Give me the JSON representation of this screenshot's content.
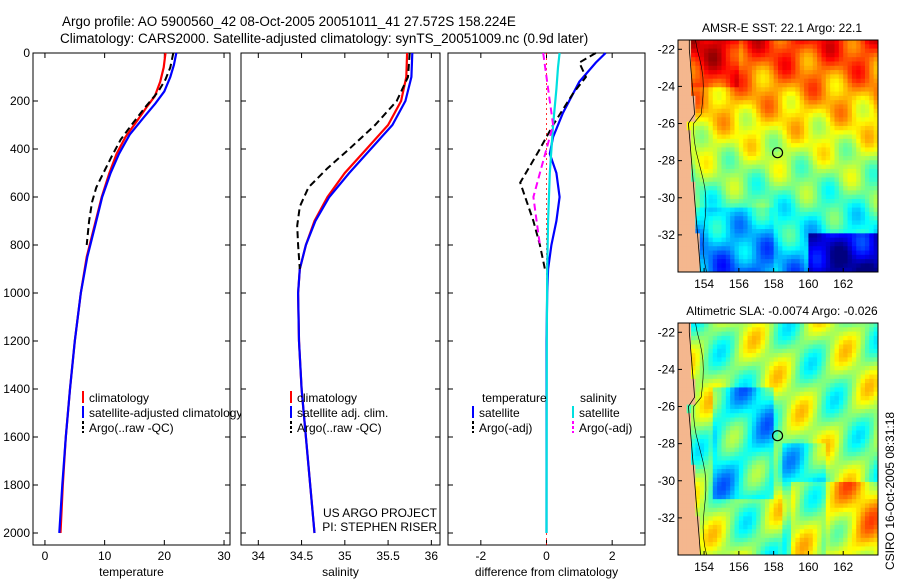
{
  "header": {
    "title_line1": "Argo profile: AO 5900560_42 08-Oct-2005 20051011_41 27.572S 158.224E",
    "title_line2": "Climatology: CARS2000. Satellite-adjusted climatology: synTS_20051009.nc (0.9d later)"
  },
  "footer_credit": "CSIRO 16-Oct-2005 08:31:18",
  "colors": {
    "climatology": "#ff0000",
    "satellite": "#0000ff",
    "argo": "#000000",
    "satellite_salt": "#00e0e0",
    "argo_salt": "#ff00ff"
  },
  "chart_data": [
    {
      "type": "line",
      "id": "temperature",
      "xlabel": "temperature",
      "xlim": [
        -2,
        31
      ],
      "ylim": [
        0,
        2050
      ],
      "xticks": [
        0,
        10,
        20,
        30
      ],
      "yticks": [
        0,
        200,
        400,
        600,
        800,
        1000,
        1200,
        1400,
        1600,
        1800,
        2000
      ],
      "y_reversed": true,
      "legend": [
        "climatology",
        "satellite-adjusted climatology",
        "Argo(..raw -QC)"
      ],
      "legend_position": "lower-center",
      "series": [
        {
          "name": "climatology",
          "color": "#ff0000",
          "style": "solid",
          "points": [
            [
              20.2,
              0
            ],
            [
              19.9,
              60
            ],
            [
              19.3,
              120
            ],
            [
              18.4,
              180
            ],
            [
              17.2,
              220
            ],
            [
              15.5,
              280
            ],
            [
              13.5,
              350
            ],
            [
              12.0,
              420
            ],
            [
              10.8,
              500
            ],
            [
              9.5,
              600
            ],
            [
              8.3,
              720
            ],
            [
              7.0,
              850
            ],
            [
              6.0,
              1000
            ],
            [
              5.0,
              1200
            ],
            [
              4.2,
              1400
            ],
            [
              3.5,
              1600
            ],
            [
              3.0,
              1800
            ],
            [
              2.6,
              2000
            ]
          ]
        },
        {
          "name": "satellite-adjusted climatology",
          "color": "#0000ff",
          "style": "solid",
          "points": [
            [
              22.0,
              0
            ],
            [
              21.6,
              50
            ],
            [
              21.0,
              100
            ],
            [
              20.0,
              160
            ],
            [
              18.5,
              210
            ],
            [
              16.5,
              270
            ],
            [
              14.2,
              340
            ],
            [
              12.4,
              420
            ],
            [
              11.0,
              500
            ],
            [
              9.6,
              600
            ],
            [
              8.4,
              720
            ],
            [
              7.1,
              850
            ],
            [
              6.0,
              1000
            ],
            [
              5.0,
              1200
            ],
            [
              4.2,
              1400
            ],
            [
              3.5,
              1600
            ],
            [
              2.9,
              1800
            ],
            [
              2.4,
              2000
            ]
          ]
        },
        {
          "name": "Argo(..raw -QC)",
          "color": "#000000",
          "style": "dashed",
          "points": [
            [
              21.5,
              0
            ],
            [
              21.0,
              60
            ],
            [
              20.2,
              110
            ],
            [
              19.0,
              160
            ],
            [
              17.0,
              220
            ],
            [
              14.8,
              290
            ],
            [
              12.7,
              360
            ],
            [
              11.2,
              430
            ],
            [
              9.8,
              500
            ],
            [
              8.6,
              560
            ],
            [
              7.9,
              620
            ],
            [
              7.4,
              700
            ],
            [
              7.0,
              800
            ]
          ]
        }
      ]
    },
    {
      "type": "line",
      "id": "salinity",
      "xlabel": "salinity",
      "xlim": [
        33.8,
        36.1
      ],
      "ylim": [
        0,
        2050
      ],
      "xticks": [
        34,
        34.5,
        35,
        35.5,
        36
      ],
      "y_reversed": true,
      "legend": [
        "climatology",
        "satellite adj. clim.",
        "Argo(..raw -QC)"
      ],
      "legend_position": "lower-center",
      "annotation": [
        "US ARGO PROJECT",
        "PI: STEPHEN RISER"
      ],
      "series": [
        {
          "name": "climatology",
          "color": "#ff0000",
          "style": "solid",
          "points": [
            [
              35.72,
              0
            ],
            [
              35.71,
              100
            ],
            [
              35.65,
              200
            ],
            [
              35.5,
              300
            ],
            [
              35.25,
              400
            ],
            [
              35.0,
              500
            ],
            [
              34.8,
              600
            ],
            [
              34.65,
              700
            ],
            [
              34.55,
              800
            ],
            [
              34.48,
              900
            ],
            [
              34.46,
              1000
            ],
            [
              34.47,
              1200
            ],
            [
              34.5,
              1400
            ],
            [
              34.55,
              1600
            ],
            [
              34.6,
              1800
            ],
            [
              34.65,
              2000
            ]
          ]
        },
        {
          "name": "satellite adj. clim.",
          "color": "#0000ff",
          "style": "solid",
          "points": [
            [
              35.78,
              0
            ],
            [
              35.77,
              100
            ],
            [
              35.7,
              200
            ],
            [
              35.55,
              300
            ],
            [
              35.3,
              400
            ],
            [
              35.05,
              500
            ],
            [
              34.82,
              600
            ],
            [
              34.66,
              700
            ],
            [
              34.55,
              800
            ],
            [
              34.48,
              900
            ],
            [
              34.46,
              1000
            ],
            [
              34.47,
              1200
            ],
            [
              34.5,
              1400
            ],
            [
              34.55,
              1600
            ],
            [
              34.6,
              1800
            ],
            [
              34.65,
              2000
            ]
          ]
        },
        {
          "name": "Argo(..raw -QC)",
          "color": "#000000",
          "style": "dashed",
          "points": [
            [
              35.75,
              0
            ],
            [
              35.73,
              100
            ],
            [
              35.6,
              200
            ],
            [
              35.35,
              300
            ],
            [
              35.05,
              400
            ],
            [
              34.8,
              480
            ],
            [
              34.58,
              560
            ],
            [
              34.48,
              640
            ],
            [
              34.45,
              720
            ],
            [
              34.46,
              800
            ],
            [
              34.48,
              900
            ]
          ]
        }
      ]
    },
    {
      "type": "line",
      "id": "difference",
      "xlabel": "difference from climatology",
      "xlim": [
        -3,
        3
      ],
      "ylim": [
        0,
        2050
      ],
      "xticks": [
        -2,
        0,
        2
      ],
      "y_reversed": true,
      "legend_columns": [
        {
          "header": "temperature",
          "items": [
            "satellite",
            "Argo(-adj)"
          ]
        },
        {
          "header": "salinity",
          "items": [
            "satellite",
            "Argo(-adj)"
          ]
        }
      ],
      "series": [
        {
          "name": "temperature satellite",
          "color": "#0000ff",
          "style": "solid",
          "points": [
            [
              1.8,
              0
            ],
            [
              1.5,
              40
            ],
            [
              1.0,
              120
            ],
            [
              0.5,
              250
            ],
            [
              0.2,
              350
            ],
            [
              0.1,
              420
            ],
            [
              0.3,
              500
            ],
            [
              0.4,
              600
            ],
            [
              0.3,
              700
            ],
            [
              0.15,
              800
            ],
            [
              0.05,
              900
            ],
            [
              0.02,
              1000
            ],
            [
              0.0,
              1200
            ],
            [
              0.0,
              2000
            ]
          ]
        },
        {
          "name": "temperature Argo(-adj)",
          "color": "#000000",
          "style": "dashed",
          "points": [
            [
              1.5,
              0
            ],
            [
              1.0,
              40
            ],
            [
              1.2,
              100
            ],
            [
              0.8,
              170
            ],
            [
              0.2,
              300
            ],
            [
              -0.2,
              400
            ],
            [
              -0.5,
              470
            ],
            [
              -0.8,
              540
            ],
            [
              -0.6,
              620
            ],
            [
              -0.4,
              700
            ],
            [
              -0.2,
              800
            ],
            [
              -0.05,
              900
            ]
          ]
        },
        {
          "name": "salinity satellite",
          "color": "#00e0e0",
          "style": "solid",
          "points": [
            [
              0.4,
              0
            ],
            [
              0.35,
              60
            ],
            [
              0.3,
              150
            ],
            [
              0.2,
              300
            ],
            [
              0.1,
              500
            ],
            [
              0.05,
              700
            ],
            [
              0.02,
              900
            ],
            [
              0.01,
              1200
            ],
            [
              0.0,
              2000
            ]
          ]
        },
        {
          "name": "salinity Argo(-adj)",
          "color": "#ff00ff",
          "style": "dashed",
          "points": [
            [
              -0.1,
              0
            ],
            [
              0.0,
              100
            ],
            [
              0.1,
              200
            ],
            [
              0.2,
              300
            ],
            [
              0.0,
              400
            ],
            [
              -0.2,
              500
            ],
            [
              -0.4,
              600
            ],
            [
              -0.3,
              700
            ],
            [
              -0.2,
              800
            ]
          ]
        }
      ]
    },
    {
      "type": "heatmap",
      "id": "sst_map",
      "title": "AMSR-E SST: 22.1 Argo: 22.1",
      "xticks": [
        154,
        156,
        158,
        160,
        162
      ],
      "yticks": [
        -22,
        -24,
        -26,
        -28,
        -30,
        -32
      ],
      "xlim": [
        152.5,
        164
      ],
      "ylim": [
        -34,
        -21.5
      ],
      "marker": {
        "lon": 158.224,
        "lat": -27.572
      },
      "colormap": "jet"
    },
    {
      "type": "heatmap",
      "id": "sla_map",
      "title": "Altimetric SLA: -0.0074 Argo: -0.026",
      "xticks": [
        154,
        156,
        158,
        160,
        162
      ],
      "yticks": [
        -22,
        -24,
        -26,
        -28,
        -30,
        -32
      ],
      "xlim": [
        152.5,
        164
      ],
      "ylim": [
        -34,
        -21.5
      ],
      "marker": {
        "lon": 158.224,
        "lat": -27.572
      },
      "colormap": "jet"
    }
  ]
}
